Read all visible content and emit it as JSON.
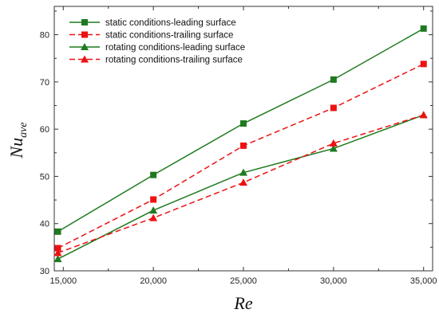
{
  "chart_data": {
    "type": "line",
    "xlabel": "Re",
    "ylabel_main": "Nu",
    "ylabel_sub": "ave",
    "xlim": [
      14500,
      35500
    ],
    "ylim": [
      30,
      86
    ],
    "xticks": [
      15000,
      20000,
      25000,
      30000,
      35000
    ],
    "xtick_labels": [
      "15,000",
      "20,000",
      "25,000",
      "30,000",
      "35,000"
    ],
    "yticks": [
      30,
      40,
      50,
      60,
      70,
      80
    ],
    "ytick_labels": [
      "30",
      "40",
      "50",
      "60",
      "70",
      "80"
    ],
    "grid": false,
    "legend_position": "top-left",
    "series": [
      {
        "name": "static conditions-leading surface",
        "color": "#1f7a1f",
        "dash": "solid",
        "marker": "square",
        "x": [
          14700,
          20000,
          25000,
          30000,
          35000
        ],
        "y": [
          38.3,
          50.3,
          61.2,
          70.5,
          81.3
        ]
      },
      {
        "name": "static conditions-trailing surface",
        "color": "#ee1111",
        "dash": "dashed",
        "marker": "square",
        "x": [
          14700,
          20000,
          25000,
          30000,
          35000
        ],
        "y": [
          34.8,
          45.1,
          56.5,
          64.5,
          73.8
        ]
      },
      {
        "name": "rotating conditions-leading surface",
        "color": "#1f7a1f",
        "dash": "solid",
        "marker": "triangle",
        "x": [
          14700,
          20000,
          25000,
          30000,
          35000
        ],
        "y": [
          32.5,
          42.8,
          50.8,
          55.9,
          63.0
        ]
      },
      {
        "name": "rotating conditions-trailing surface",
        "color": "#ee1111",
        "dash": "dashed",
        "marker": "triangle",
        "x": [
          14700,
          20000,
          25000,
          30000,
          35000
        ],
        "y": [
          33.8,
          41.2,
          48.7,
          57.0,
          63.0
        ]
      }
    ]
  }
}
